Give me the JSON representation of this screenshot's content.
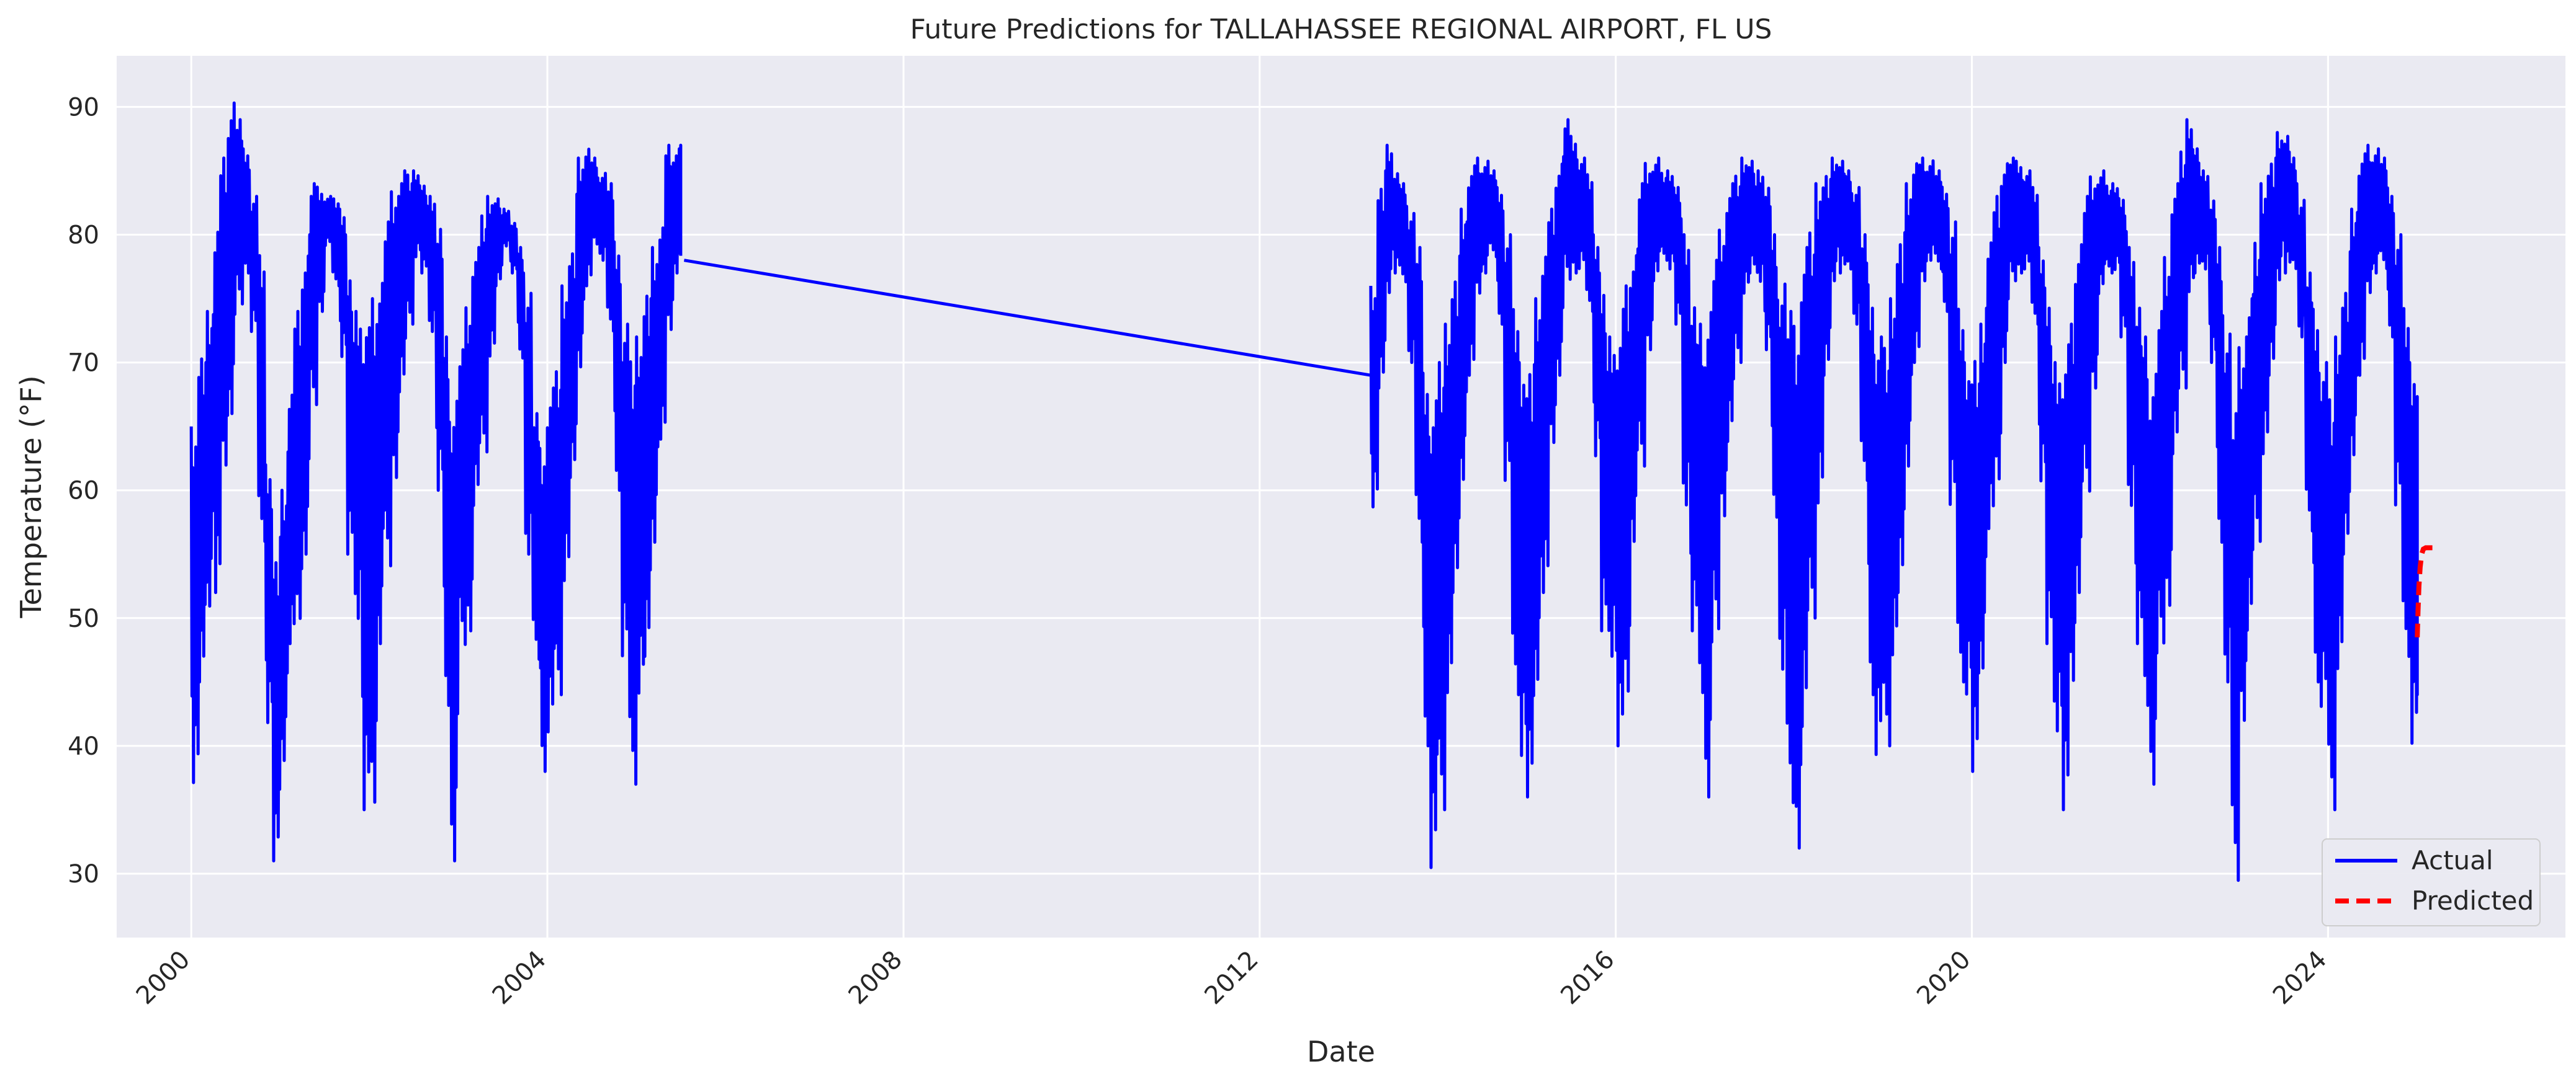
{
  "chart_data": {
    "type": "line",
    "title": "Future Predictions for TALLAHASSEE REGIONAL AIRPORT, FL US",
    "xlabel": "Date",
    "ylabel": "Temperature (°F)",
    "xlim": [
      "1999-03-01",
      "2026-09-01"
    ],
    "ylim": [
      25,
      94
    ],
    "x_ticks": [
      {
        "date": "2000-01-01",
        "label": "2000"
      },
      {
        "date": "2004-01-01",
        "label": "2004"
      },
      {
        "date": "2008-01-01",
        "label": "2008"
      },
      {
        "date": "2012-01-01",
        "label": "2012"
      },
      {
        "date": "2016-01-01",
        "label": "2016"
      },
      {
        "date": "2020-01-01",
        "label": "2020"
      },
      {
        "date": "2024-01-01",
        "label": "2024"
      }
    ],
    "y_ticks": [
      30,
      40,
      50,
      60,
      70,
      80,
      90
    ],
    "grid": true,
    "background": "#eaeaf2",
    "legend_position": "lower-right",
    "series": [
      {
        "name": "Actual",
        "color": "#0000ff",
        "style": "solid",
        "segments": [
          {
            "x": [
              "2000-01-01",
              "2000-02-01",
              "2000-03-01",
              "2000-04-01",
              "2000-05-01",
              "2000-06-01",
              "2000-07-01",
              "2000-08-01",
              "2000-09-01",
              "2000-10-01",
              "2000-11-01",
              "2000-12-01",
              "2001-01-01",
              "2001-02-01",
              "2001-03-01",
              "2001-04-01",
              "2001-05-01",
              "2001-06-01",
              "2001-07-01",
              "2001-08-01",
              "2001-09-01",
              "2001-10-01",
              "2001-11-01",
              "2001-12-01",
              "2002-01-01",
              "2002-02-01",
              "2002-03-01",
              "2002-04-01",
              "2002-05-01",
              "2002-06-01",
              "2002-07-01",
              "2002-08-01",
              "2002-09-01",
              "2002-10-01",
              "2002-11-01",
              "2002-12-01",
              "2003-01-01",
              "2003-02-01",
              "2003-03-01",
              "2003-04-01",
              "2003-05-01",
              "2003-06-01",
              "2003-07-01",
              "2003-08-01",
              "2003-09-01",
              "2003-10-01",
              "2003-11-01",
              "2003-12-01",
              "2004-01-01",
              "2004-02-01",
              "2004-03-01",
              "2004-04-01",
              "2004-05-01",
              "2004-06-01",
              "2004-07-01",
              "2004-08-01",
              "2004-09-01",
              "2004-10-01",
              "2004-11-01",
              "2004-12-01",
              "2005-01-01",
              "2005-02-01",
              "2005-03-01",
              "2005-04-01",
              "2005-05-01",
              "2005-06-01",
              "2005-07-01"
            ],
            "min": [
              36,
              45,
              50,
              52,
              61,
              66,
              74,
              77,
              72,
              56,
              41,
              31,
              38,
              48,
              49,
              55,
              66,
              74,
              79,
              76,
              70,
              55,
              49,
              35,
              34,
              48,
              53,
              61,
              67,
              73,
              78,
              77,
              72,
              60,
              42,
              31,
              47,
              49,
              58,
              63,
              70,
              76,
              79,
              77,
              70,
              55,
              46,
              38,
              40,
              44,
              52,
              61,
              69,
              76,
              79,
              78,
              72,
              60,
              46,
              37,
              43,
              47,
              55,
              64,
              72,
              77,
              78
            ],
            "max": [
              65,
              71,
              74,
              81,
              86,
              91,
              89,
              87,
              83,
              79,
              62,
              55,
              60,
              68,
              74,
              79,
              84,
              84,
              83,
              83,
              82,
              77,
              74,
              73,
              75,
              77,
              81,
              84,
              85,
              85,
              85,
              84,
              83,
              81,
              72,
              68,
              71,
              75,
              79,
              82,
              83,
              83,
              82,
              81,
              79,
              76,
              66,
              64,
              68,
              70,
              76,
              79,
              86,
              87,
              86,
              85,
              84,
              80,
              73,
              71,
              72,
              76,
              79,
              81,
              87,
              87,
              87
            ]
          },
          {
            "x": [
              "2005-07-15",
              "2013-04-01"
            ],
            "min": [
              78,
              69
            ],
            "max": [
              78,
              69
            ]
          },
          {
            "x": [
              "2013-04-01",
              "2013-05-01",
              "2013-06-01",
              "2013-07-01",
              "2013-08-01",
              "2013-09-01",
              "2013-10-01",
              "2013-11-01",
              "2013-12-01",
              "2014-01-01",
              "2014-02-01",
              "2014-03-01",
              "2014-04-01",
              "2014-05-01",
              "2014-06-01",
              "2014-07-01",
              "2014-08-01",
              "2014-09-01",
              "2014-10-01",
              "2014-11-01",
              "2014-12-01",
              "2015-01-01",
              "2015-02-01",
              "2015-03-01",
              "2015-04-01",
              "2015-05-01",
              "2015-06-01",
              "2015-07-01",
              "2015-08-01",
              "2015-09-01",
              "2015-10-01",
              "2015-11-01",
              "2015-12-01",
              "2016-01-01",
              "2016-02-01",
              "2016-03-01",
              "2016-04-01",
              "2016-05-01",
              "2016-06-01",
              "2016-07-01",
              "2016-08-01",
              "2016-09-01",
              "2016-10-01",
              "2016-11-01",
              "2016-12-01",
              "2017-01-01",
              "2017-02-01",
              "2017-03-01",
              "2017-04-01",
              "2017-05-01",
              "2017-06-01",
              "2017-07-01",
              "2017-08-01",
              "2017-09-01",
              "2017-10-01",
              "2017-11-01",
              "2017-12-01",
              "2018-01-01",
              "2018-02-01",
              "2018-03-01",
              "2018-04-01",
              "2018-05-01",
              "2018-06-01",
              "2018-07-01",
              "2018-08-01",
              "2018-09-01",
              "2018-10-01",
              "2018-11-01",
              "2018-12-01",
              "2019-01-01",
              "2019-02-01",
              "2019-03-01",
              "2019-04-01",
              "2019-05-01",
              "2019-06-01",
              "2019-07-01",
              "2019-08-01",
              "2019-09-01",
              "2019-10-01",
              "2019-11-01",
              "2019-12-01",
              "2020-01-01",
              "2020-02-01",
              "2020-03-01",
              "2020-04-01",
              "2020-05-01",
              "2020-06-01",
              "2020-07-01",
              "2020-08-01",
              "2020-09-01",
              "2020-10-01",
              "2020-11-01",
              "2020-12-01",
              "2021-01-01",
              "2021-02-01",
              "2021-03-01",
              "2021-04-01",
              "2021-05-01",
              "2021-06-01",
              "2021-07-01",
              "2021-08-01",
              "2021-09-01",
              "2021-10-01",
              "2021-11-01",
              "2021-12-01",
              "2022-01-01",
              "2022-02-01",
              "2022-03-01",
              "2022-04-01",
              "2022-05-01",
              "2022-06-01",
              "2022-07-01",
              "2022-08-01",
              "2022-09-01",
              "2022-10-01",
              "2022-11-01",
              "2022-12-01",
              "2023-01-01",
              "2023-02-01",
              "2023-03-01",
              "2023-04-01",
              "2023-05-01",
              "2023-06-01",
              "2023-07-01",
              "2023-08-01",
              "2023-09-01",
              "2023-10-01",
              "2023-11-01",
              "2023-12-01",
              "2024-01-01",
              "2024-02-01",
              "2024-03-01",
              "2024-04-01",
              "2024-05-01",
              "2024-06-01",
              "2024-07-01",
              "2024-08-01",
              "2024-09-01",
              "2024-10-01",
              "2024-11-01",
              "2024-12-01",
              "2025-01-01"
            ],
            "min": [
              58,
              68,
              75,
              77,
              76,
              70,
              55,
              40,
              29,
              35,
              43,
              52,
              60,
              69,
              75,
              77,
              78,
              73,
              60,
              44,
              38,
              36,
              44,
              52,
              63,
              69,
              76,
              77,
              77,
              74,
              62,
              49,
              46,
              40,
              43,
              56,
              61,
              71,
              76,
              78,
              77,
              73,
              58,
              49,
              43,
              36,
              48,
              58,
              63,
              70,
              75,
              77,
              76,
              71,
              57,
              46,
              34,
              32,
              40,
              50,
              58,
              69,
              76,
              77,
              77,
              73,
              60,
              44,
              38,
              40,
              46,
              52,
              61,
              70,
              76,
              78,
              77,
              74,
              58,
              45,
              43,
              38,
              45,
              57,
              60,
              70,
              76,
              77,
              77,
              73,
              60,
              48,
              40,
              35,
              44,
              52,
              59,
              68,
              75,
              77,
              77,
              72,
              58,
              48,
              42,
              37,
              47,
              51,
              62,
              68,
              75,
              77,
              77,
              70,
              55,
              45,
              28,
              42,
              48,
              56,
              62,
              69,
              76,
              77,
              77,
              72,
              56,
              45,
              42,
              35,
              45,
              55,
              62,
              69,
              75,
              77,
              77,
              72,
              58,
              47,
              39,
              44
            ],
            "max": [
              76,
              84,
              87,
              85,
              84,
              82,
              79,
              70,
              67,
              71,
              73,
              77,
              82,
              85,
              86,
              86,
              85,
              84,
              80,
              75,
              70,
              70,
              75,
              79,
              82,
              86,
              89,
              88,
              86,
              85,
              80,
              76,
              72,
              72,
              76,
              79,
              84,
              86,
              86,
              85,
              85,
              84,
              80,
              75,
              73,
              75,
              78,
              81,
              84,
              85,
              86,
              86,
              85,
              84,
              80,
              77,
              74,
              74,
              79,
              81,
              84,
              85,
              86,
              86,
              85,
              84,
              80,
              77,
              72,
              72,
              75,
              80,
              84,
              86,
              86,
              86,
              85,
              84,
              81,
              75,
              70,
              71,
              73,
              80,
              83,
              86,
              86,
              86,
              85,
              84,
              79,
              75,
              70,
              70,
              73,
              80,
              83,
              85,
              85,
              84,
              84,
              83,
              79,
              75,
              72,
              70,
              74,
              79,
              84,
              87,
              89,
              87,
              85,
              83,
              79,
              73,
              66,
              72,
              75,
              80,
              84,
              86,
              88,
              88,
              86,
              83,
              77,
              75,
              70,
              68,
              72,
              76,
              82,
              86,
              87,
              87,
              86,
              84,
              80,
              75,
              70,
              68
            ]
          }
        ]
      },
      {
        "name": "Predicted",
        "color": "#ff0000",
        "style": "dashed",
        "x": [
          "2025-01-01",
          "2025-01-04",
          "2025-01-08",
          "2025-01-13",
          "2025-01-19",
          "2025-01-26",
          "2025-02-05",
          "2025-02-20",
          "2025-03-10"
        ],
        "y": [
          48.5,
          50.5,
          52.5,
          54.0,
          55.0,
          55.4,
          55.5,
          55.5,
          55.5
        ]
      }
    ]
  }
}
